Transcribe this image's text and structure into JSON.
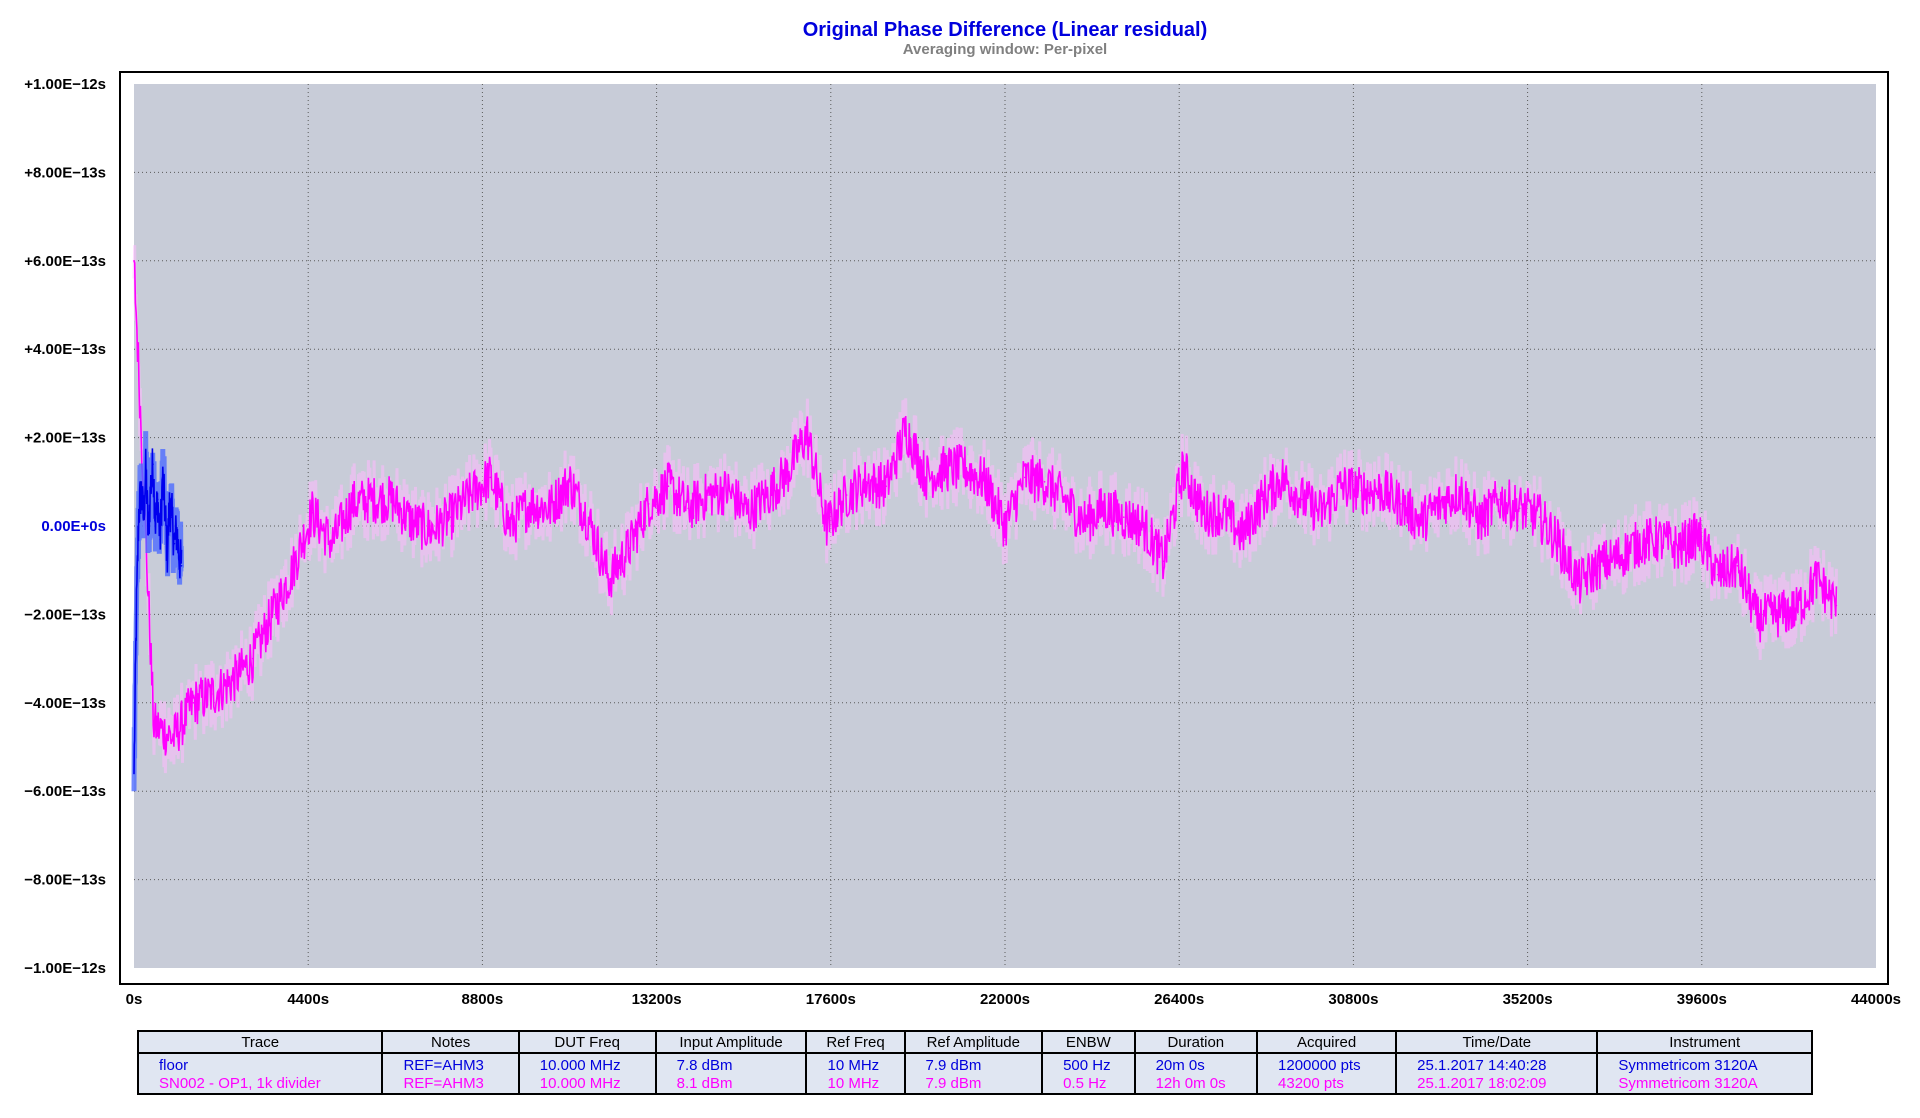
{
  "chart_data": {
    "type": "line",
    "title": "Original Phase Difference (Linear residual)",
    "subtitle": "Averaging window: Per-pixel",
    "xlim": [
      0,
      44000
    ],
    "ylim": [
      -1e-12,
      1e-12
    ],
    "x_ticks": [
      0,
      4400,
      8800,
      13200,
      17600,
      22000,
      26400,
      30800,
      35200,
      39600,
      44000
    ],
    "x_tick_labels": [
      "0s",
      "4400s",
      "8800s",
      "13200s",
      "17600s",
      "22000s",
      "26400s",
      "30800s",
      "35200s",
      "39600s",
      "44000s"
    ],
    "y_ticks": [
      1e-12,
      8e-13,
      6e-13,
      4e-13,
      2e-13,
      0,
      -2e-13,
      -4e-13,
      -6e-13,
      -8e-13,
      -1e-12
    ],
    "y_tick_labels": [
      "+1.00E−12s",
      "+8.00E−13s",
      "+6.00E−13s",
      "+4.00E−13s",
      "+2.00E−13s",
      "0.00E+0s",
      "−2.00E−13s",
      "−4.00E−13s",
      "−6.00E−13s",
      "−8.00E−13s",
      "−1.00E−12s"
    ],
    "grid": true,
    "series": [
      {
        "name": "floor",
        "color": "#0000ee",
        "envelope_color": "#4d6cff",
        "x": [
          0,
          60,
          120,
          180,
          240,
          300,
          360,
          420,
          480,
          540,
          600,
          660,
          720,
          780,
          840,
          900,
          960,
          1020,
          1080,
          1140,
          1200
        ],
        "y": [
          -5.6e-13,
          -2e-13,
          3e-14,
          8e-14,
          2e-14,
          1.3e-13,
          -2e-14,
          9e-14,
          1.4e-13,
          1e-14,
          6e-14,
          -3e-14,
          1.1e-13,
          4e-14,
          -6e-14,
          5e-14,
          2e-14,
          -4e-14,
          -1e-14,
          -7e-14,
          -9e-14
        ]
      },
      {
        "name": "SN002 - OP1, 1k divider",
        "color": "#ff00ff",
        "envelope_color": "#ffbaff",
        "x": [
          0,
          500,
          1000,
          1500,
          2000,
          2500,
          3000,
          3500,
          4000,
          4500,
          5000,
          5500,
          6000,
          6500,
          7000,
          7500,
          8000,
          8500,
          9000,
          9500,
          10000,
          10500,
          11000,
          11500,
          12000,
          12500,
          13000,
          13500,
          14000,
          14500,
          15000,
          15500,
          16000,
          16500,
          17000,
          17500,
          18000,
          18500,
          19000,
          19500,
          20000,
          20500,
          21000,
          21500,
          22000,
          22500,
          23000,
          23500,
          24000,
          24500,
          25000,
          25500,
          26000,
          26500,
          27000,
          27500,
          28000,
          28500,
          29000,
          29500,
          30000,
          30500,
          31000,
          31500,
          32000,
          32500,
          33000,
          33500,
          34000,
          34500,
          35000,
          35500,
          36000,
          36500,
          37000,
          37500,
          38000,
          38500,
          39000,
          39500,
          40000,
          40500,
          41000,
          41500,
          42000,
          42500,
          43000
        ],
        "y": [
          6e-13,
          -4.5e-13,
          -4.8e-13,
          -4e-13,
          -3.8e-13,
          -3.5e-13,
          -3e-13,
          -2e-13,
          -1e-13,
          3e-14,
          -4e-14,
          5e-14,
          6e-14,
          6e-14,
          1e-14,
          -1e-14,
          2e-14,
          7e-14,
          1.1e-13,
          0.0,
          5e-14,
          4e-14,
          1e-13,
          1e-14,
          -1.2e-13,
          -5e-14,
          5e-14,
          9e-14,
          4e-14,
          7e-14,
          8e-14,
          3e-14,
          7e-14,
          1.2e-13,
          2.1e-13,
          0.0,
          7e-14,
          1e-13,
          9e-14,
          2.2e-13,
          1.1e-13,
          1.3e-13,
          1.3e-13,
          1e-13,
          0.0,
          1.1e-13,
          1e-13,
          6e-14,
          1e-14,
          4e-14,
          2e-14,
          0.0,
          -8e-14,
          1.3e-13,
          3e-14,
          3e-14,
          -2e-14,
          6e-14,
          1.1e-13,
          6e-14,
          3e-14,
          9e-14,
          8e-14,
          8e-14,
          5e-14,
          1e-14,
          5e-14,
          8e-14,
          1e-14,
          6e-14,
          4e-14,
          2e-14,
          -4e-14,
          -1.3e-13,
          -9e-14,
          -7e-14,
          -4e-14,
          -3e-14,
          -5e-14,
          -2e-14,
          -1.1e-13,
          -9e-14,
          -2.1e-13,
          -2e-13,
          -1.9e-13,
          -1.2e-13,
          -1.8e-13
        ]
      }
    ]
  },
  "legend_table": {
    "headers": [
      "Trace",
      "Notes",
      "DUT Freq",
      "Input Amplitude",
      "Ref Freq",
      "Ref Amplitude",
      "ENBW",
      "Duration",
      "Acquired",
      "Time/Date",
      "Instrument"
    ],
    "rows": [
      {
        "color": "#0000dd",
        "cells": [
          "floor",
          "REF=AHM3",
          "10.000 MHz",
          "7.8 dBm",
          "10 MHz",
          "7.9 dBm",
          "500 Hz",
          "20m 0s",
          "1200000 pts",
          "25.1.2017 14:40:28",
          "Symmetricom 3120A"
        ]
      },
      {
        "color": "#ff00ff",
        "cells": [
          "SN002 - OP1, 1k divider",
          "REF=AHM3",
          "10.000 MHz",
          "8.1 dBm",
          "10 MHz",
          "7.9 dBm",
          "0.5 Hz",
          "12h 0m 0s",
          "43200 pts",
          "25.1.2017 18:02:09",
          "Symmetricom 3120A"
        ]
      }
    ]
  }
}
